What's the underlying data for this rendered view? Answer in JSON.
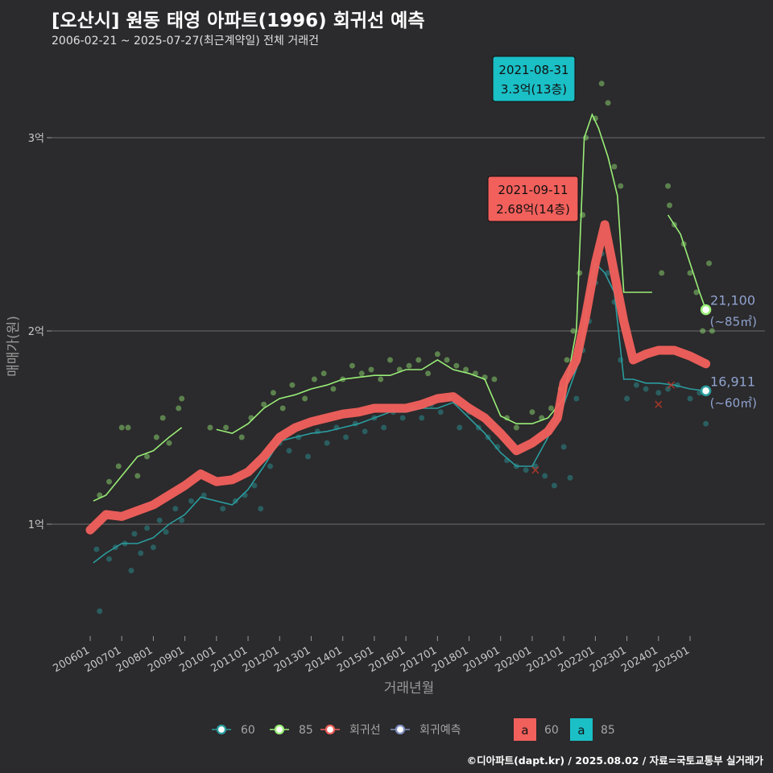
{
  "title": "[오산시] 원동 태영 아파트(1996) 회귀선 예측",
  "subtitle": "2006-02-21 ~ 2025-07-27(최근계약일) 전체 거래건",
  "caption": "©디아파트(dapt.kr) / 2025.08.02 / 자료=국토교통부 실거래가",
  "chart_data": {
    "type": "line",
    "xlabel": "거래년월",
    "ylabel": "매매가(원)",
    "ylim": [
      0.5,
      3.3
    ],
    "x_ticks": [
      "200601",
      "200701",
      "200801",
      "200901",
      "201001",
      "201101",
      "201201",
      "201301",
      "201401",
      "201501",
      "201601",
      "201701",
      "201801",
      "201901",
      "202001",
      "202101",
      "202201",
      "202301",
      "202401",
      "202501"
    ],
    "y_ticks": [
      {
        "value": 1,
        "label": "1억"
      },
      {
        "value": 2,
        "label": "2억"
      },
      {
        "value": 3,
        "label": "3억"
      }
    ],
    "grid": true,
    "legend_position": "bottom",
    "colors": {
      "s60": "#2a9d9f",
      "s85": "#99ee77",
      "regression": "#f2605c",
      "prediction": "#7f8fc0"
    },
    "series": [
      {
        "name": "60",
        "points": [
          [
            2006.1,
            0.8
          ],
          [
            2006.5,
            0.85
          ],
          [
            2007.0,
            0.9
          ],
          [
            2007.5,
            0.9
          ],
          [
            2008.0,
            0.93
          ],
          [
            2008.5,
            1.0
          ],
          [
            2009.0,
            1.05
          ],
          [
            2009.5,
            1.14
          ],
          [
            2010.0,
            1.12
          ],
          [
            2010.5,
            1.1
          ],
          [
            2011.0,
            1.18
          ],
          [
            2011.5,
            1.3
          ],
          [
            2012.0,
            1.43
          ],
          [
            2012.5,
            1.45
          ],
          [
            2013.0,
            1.47
          ],
          [
            2013.5,
            1.48
          ],
          [
            2014.0,
            1.5
          ],
          [
            2014.5,
            1.52
          ],
          [
            2015.0,
            1.55
          ],
          [
            2015.5,
            1.58
          ],
          [
            2016.0,
            1.58
          ],
          [
            2016.5,
            1.6
          ],
          [
            2017.0,
            1.6
          ],
          [
            2017.5,
            1.63
          ],
          [
            2018.0,
            1.55
          ],
          [
            2018.5,
            1.47
          ],
          [
            2019.0,
            1.37
          ],
          [
            2019.5,
            1.3
          ],
          [
            2020.0,
            1.3
          ],
          [
            2020.5,
            1.45
          ],
          [
            2021.0,
            1.62
          ],
          [
            2021.5,
            1.85
          ],
          [
            2021.8,
            2.2
          ],
          [
            2022.0,
            2.35
          ],
          [
            2022.3,
            2.3
          ],
          [
            2022.6,
            2.2
          ],
          [
            2022.9,
            1.75
          ],
          [
            2023.2,
            1.75
          ],
          [
            2023.6,
            1.73
          ],
          [
            2024.0,
            1.73
          ],
          [
            2024.5,
            1.72
          ],
          [
            2025.0,
            1.7
          ],
          [
            2025.5,
            1.69
          ]
        ]
      },
      {
        "name": "85",
        "points": [
          [
            2006.1,
            1.12
          ],
          [
            2006.5,
            1.15
          ],
          [
            2007.0,
            1.25
          ],
          [
            2007.5,
            1.35
          ],
          [
            2008.0,
            1.38
          ],
          [
            2008.5,
            1.45
          ],
          [
            2008.9,
            1.5
          ],
          [
            2010.0,
            1.49
          ],
          [
            2010.5,
            1.47
          ],
          [
            2011.0,
            1.52
          ],
          [
            2011.5,
            1.6
          ],
          [
            2012.0,
            1.65
          ],
          [
            2012.5,
            1.67
          ],
          [
            2013.0,
            1.7
          ],
          [
            2013.5,
            1.72
          ],
          [
            2014.0,
            1.75
          ],
          [
            2014.5,
            1.76
          ],
          [
            2015.0,
            1.77
          ],
          [
            2015.5,
            1.77
          ],
          [
            2016.0,
            1.8
          ],
          [
            2016.5,
            1.8
          ],
          [
            2017.0,
            1.85
          ],
          [
            2017.5,
            1.8
          ],
          [
            2018.0,
            1.78
          ],
          [
            2018.5,
            1.75
          ],
          [
            2019.0,
            1.56
          ],
          [
            2019.5,
            1.52
          ],
          [
            2020.0,
            1.52
          ],
          [
            2020.5,
            1.55
          ],
          [
            2021.0,
            1.65
          ],
          [
            2021.4,
            2.0
          ],
          [
            2021.65,
            3.0
          ],
          [
            2021.9,
            3.12
          ],
          [
            2022.1,
            3.05
          ],
          [
            2022.4,
            2.9
          ],
          [
            2022.7,
            2.7
          ],
          [
            2022.9,
            2.2
          ],
          [
            2023.3,
            2.2
          ],
          [
            2023.8,
            2.2
          ],
          [
            2024.3,
            2.6
          ],
          [
            2024.7,
            2.5
          ],
          [
            2025.0,
            2.35
          ],
          [
            2025.3,
            2.2
          ],
          [
            2025.5,
            2.11
          ]
        ]
      },
      {
        "name": "회귀선",
        "points": [
          [
            2006.0,
            0.97
          ],
          [
            2006.5,
            1.05
          ],
          [
            2007.0,
            1.04
          ],
          [
            2007.5,
            1.07
          ],
          [
            2008.0,
            1.1
          ],
          [
            2008.5,
            1.15
          ],
          [
            2009.0,
            1.2
          ],
          [
            2009.5,
            1.26
          ],
          [
            2010.0,
            1.22
          ],
          [
            2010.5,
            1.23
          ],
          [
            2011.0,
            1.27
          ],
          [
            2011.5,
            1.35
          ],
          [
            2012.0,
            1.45
          ],
          [
            2012.5,
            1.5
          ],
          [
            2013.0,
            1.53
          ],
          [
            2013.5,
            1.55
          ],
          [
            2014.0,
            1.57
          ],
          [
            2014.5,
            1.58
          ],
          [
            2015.0,
            1.6
          ],
          [
            2015.5,
            1.6
          ],
          [
            2016.0,
            1.6
          ],
          [
            2016.5,
            1.62
          ],
          [
            2017.0,
            1.65
          ],
          [
            2017.5,
            1.66
          ],
          [
            2018.0,
            1.6
          ],
          [
            2018.5,
            1.55
          ],
          [
            2019.0,
            1.47
          ],
          [
            2019.5,
            1.38
          ],
          [
            2020.0,
            1.42
          ],
          [
            2020.5,
            1.48
          ],
          [
            2020.8,
            1.55
          ],
          [
            2021.0,
            1.73
          ],
          [
            2021.4,
            1.85
          ],
          [
            2021.7,
            2.08
          ],
          [
            2022.0,
            2.35
          ],
          [
            2022.3,
            2.55
          ],
          [
            2022.6,
            2.3
          ],
          [
            2022.9,
            2.05
          ],
          [
            2023.2,
            1.85
          ],
          [
            2023.6,
            1.88
          ],
          [
            2024.0,
            1.9
          ],
          [
            2024.5,
            1.9
          ],
          [
            2025.0,
            1.87
          ],
          [
            2025.5,
            1.83
          ]
        ]
      }
    ],
    "prediction_points": [
      [
        2020.1,
        1.28
      ],
      [
        2024.0,
        1.62
      ],
      [
        2024.4,
        1.72
      ]
    ],
    "scatter_60": [
      [
        2006.2,
        0.87
      ],
      [
        2006.3,
        0.55
      ],
      [
        2006.6,
        0.82
      ],
      [
        2006.8,
        0.88
      ],
      [
        2007.1,
        0.9
      ],
      [
        2007.3,
        0.76
      ],
      [
        2007.4,
        0.95
      ],
      [
        2007.6,
        0.85
      ],
      [
        2007.8,
        0.98
      ],
      [
        2008.0,
        0.88
      ],
      [
        2008.2,
        1.02
      ],
      [
        2008.4,
        0.96
      ],
      [
        2008.7,
        1.08
      ],
      [
        2008.9,
        1.02
      ],
      [
        2009.2,
        1.12
      ],
      [
        2009.6,
        1.15
      ],
      [
        2010.2,
        1.08
      ],
      [
        2010.6,
        1.12
      ],
      [
        2010.9,
        1.15
      ],
      [
        2011.2,
        1.2
      ],
      [
        2011.4,
        1.08
      ],
      [
        2011.7,
        1.3
      ],
      [
        2012.0,
        1.42
      ],
      [
        2012.3,
        1.38
      ],
      [
        2012.6,
        1.45
      ],
      [
        2012.9,
        1.35
      ],
      [
        2013.2,
        1.48
      ],
      [
        2013.5,
        1.42
      ],
      [
        2013.8,
        1.5
      ],
      [
        2014.1,
        1.45
      ],
      [
        2014.4,
        1.52
      ],
      [
        2014.7,
        1.48
      ],
      [
        2015.0,
        1.55
      ],
      [
        2015.3,
        1.5
      ],
      [
        2015.6,
        1.58
      ],
      [
        2015.9,
        1.55
      ],
      [
        2016.2,
        1.6
      ],
      [
        2016.5,
        1.55
      ],
      [
        2016.8,
        1.62
      ],
      [
        2017.1,
        1.58
      ],
      [
        2017.4,
        1.65
      ],
      [
        2017.7,
        1.5
      ],
      [
        2018.0,
        1.58
      ],
      [
        2018.3,
        1.5
      ],
      [
        2018.6,
        1.45
      ],
      [
        2018.9,
        1.4
      ],
      [
        2019.2,
        1.33
      ],
      [
        2019.5,
        1.3
      ],
      [
        2019.8,
        1.28
      ],
      [
        2020.1,
        1.3
      ],
      [
        2020.4,
        1.25
      ],
      [
        2020.7,
        1.2
      ],
      [
        2021.0,
        1.4
      ],
      [
        2021.2,
        1.24
      ],
      [
        2021.4,
        1.65
      ],
      [
        2021.6,
        1.9
      ],
      [
        2021.8,
        2.05
      ],
      [
        2022.0,
        2.25
      ],
      [
        2022.2,
        2.4
      ],
      [
        2022.4,
        2.3
      ],
      [
        2022.6,
        2.15
      ],
      [
        2022.8,
        1.85
      ],
      [
        2023.0,
        1.65
      ],
      [
        2023.3,
        1.72
      ],
      [
        2023.6,
        1.7
      ],
      [
        2024.0,
        1.68
      ],
      [
        2024.3,
        1.7
      ],
      [
        2024.6,
        1.72
      ],
      [
        2025.0,
        1.65
      ],
      [
        2025.3,
        1.68
      ],
      [
        2025.5,
        1.52
      ]
    ],
    "scatter_85": [
      [
        2006.3,
        1.15
      ],
      [
        2006.6,
        1.22
      ],
      [
        2006.9,
        1.3
      ],
      [
        2007.0,
        1.5
      ],
      [
        2007.2,
        1.5
      ],
      [
        2007.5,
        1.25
      ],
      [
        2007.8,
        1.35
      ],
      [
        2008.1,
        1.45
      ],
      [
        2008.3,
        1.55
      ],
      [
        2008.5,
        1.42
      ],
      [
        2008.8,
        1.6
      ],
      [
        2008.9,
        1.65
      ],
      [
        2009.8,
        1.5
      ],
      [
        2010.3,
        1.5
      ],
      [
        2010.8,
        1.45
      ],
      [
        2011.1,
        1.55
      ],
      [
        2011.5,
        1.62
      ],
      [
        2011.8,
        1.68
      ],
      [
        2012.1,
        1.6
      ],
      [
        2012.4,
        1.72
      ],
      [
        2012.8,
        1.65
      ],
      [
        2013.1,
        1.75
      ],
      [
        2013.4,
        1.78
      ],
      [
        2013.7,
        1.7
      ],
      [
        2014.0,
        1.75
      ],
      [
        2014.3,
        1.82
      ],
      [
        2014.6,
        1.78
      ],
      [
        2014.9,
        1.8
      ],
      [
        2015.2,
        1.75
      ],
      [
        2015.5,
        1.85
      ],
      [
        2015.8,
        1.8
      ],
      [
        2016.1,
        1.82
      ],
      [
        2016.4,
        1.85
      ],
      [
        2016.7,
        1.78
      ],
      [
        2017.0,
        1.88
      ],
      [
        2017.3,
        1.85
      ],
      [
        2017.6,
        1.82
      ],
      [
        2017.9,
        1.8
      ],
      [
        2018.2,
        1.78
      ],
      [
        2018.5,
        1.76
      ],
      [
        2018.8,
        1.75
      ],
      [
        2019.2,
        1.55
      ],
      [
        2019.5,
        1.5
      ],
      [
        2020.0,
        1.58
      ],
      [
        2020.3,
        1.55
      ],
      [
        2020.6,
        1.6
      ],
      [
        2020.9,
        1.7
      ],
      [
        2021.1,
        1.85
      ],
      [
        2021.3,
        2.0
      ],
      [
        2021.5,
        2.3
      ],
      [
        2021.6,
        2.6
      ],
      [
        2021.7,
        3.0
      ],
      [
        2022.0,
        3.1
      ],
      [
        2022.2,
        3.28
      ],
      [
        2022.4,
        3.18
      ],
      [
        2022.6,
        2.85
      ],
      [
        2022.8,
        2.75
      ],
      [
        2024.1,
        2.3
      ],
      [
        2024.3,
        2.75
      ],
      [
        2024.35,
        2.65
      ],
      [
        2024.5,
        2.55
      ],
      [
        2024.8,
        2.45
      ],
      [
        2025.0,
        2.3
      ],
      [
        2025.2,
        2.2
      ],
      [
        2025.4,
        2.0
      ],
      [
        2025.6,
        2.35
      ],
      [
        2025.7,
        2.0
      ]
    ],
    "annotations": [
      {
        "date": "2021-08-31",
        "price": "3.3억(13층)",
        "color": "#1bbfc6"
      },
      {
        "date": "2021-09-11",
        "price": "2.68억(14층)",
        "color": "#f2605c"
      }
    ],
    "end_labels": [
      {
        "value": "21,100",
        "unit": "(~85㎡)",
        "y": 2.11
      },
      {
        "value": "16,911",
        "unit": "(~60㎡)",
        "y": 1.69
      }
    ],
    "legend": [
      {
        "label": "60",
        "color": "#2a9d9f"
      },
      {
        "label": "85",
        "color": "#99ee77"
      },
      {
        "label": "회귀선",
        "color": "#f2605c"
      },
      {
        "label": "회귀예측",
        "color": "#7f8fc0"
      }
    ],
    "label_legend": [
      {
        "label": "60",
        "box": "a",
        "color": "#f2605c"
      },
      {
        "label": "85",
        "box": "a",
        "color": "#1bbfc6"
      }
    ]
  }
}
